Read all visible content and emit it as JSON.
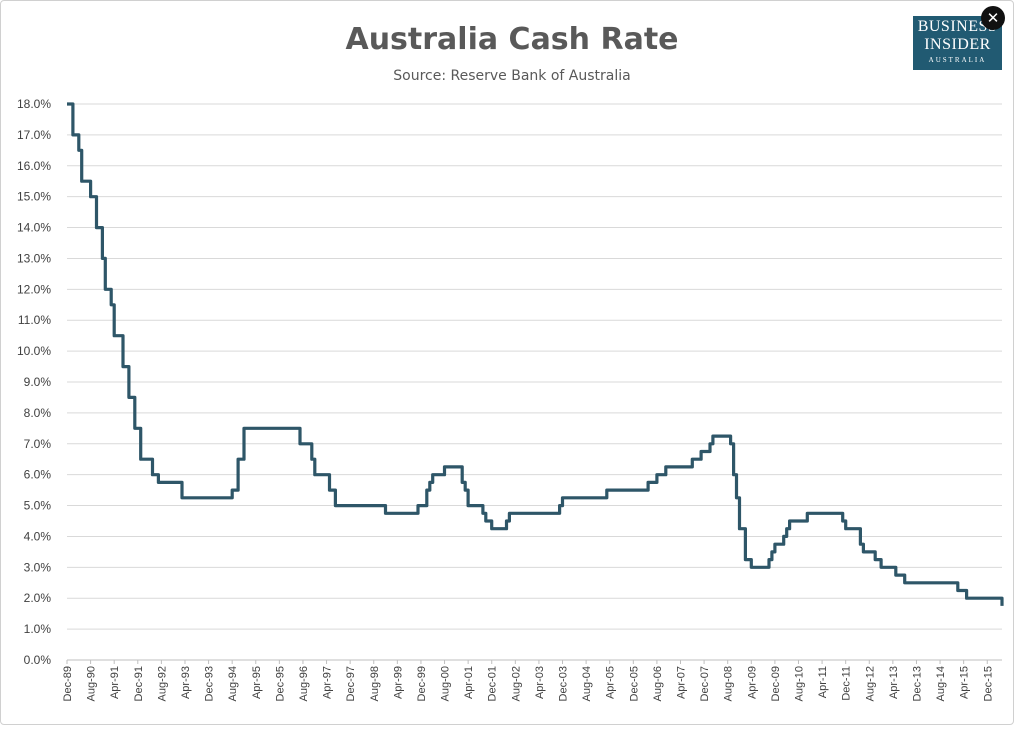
{
  "close_button": {
    "glyph": "✕",
    "icon": "close-icon"
  },
  "logo": {
    "line1": "BUSINESS",
    "line2": "INSIDER",
    "line3": "AUSTRALIA",
    "color": "#215a72"
  },
  "chart_data": {
    "type": "line",
    "title": "Australia Cash Rate",
    "subtitle": "Source: Reserve Bank of Australia",
    "xlabel": "",
    "ylabel": "",
    "ylim": [
      0,
      18
    ],
    "yticks": [
      "0.0%",
      "1.0%",
      "2.0%",
      "3.0%",
      "4.0%",
      "5.0%",
      "6.0%",
      "7.0%",
      "8.0%",
      "9.0%",
      "10.0%",
      "11.0%",
      "12.0%",
      "13.0%",
      "14.0%",
      "15.0%",
      "16.0%",
      "17.0%",
      "18.0%"
    ],
    "xticks": [
      "Dec-89",
      "Aug-90",
      "Apr-91",
      "Dec-91",
      "Aug-92",
      "Apr-93",
      "Dec-93",
      "Aug-94",
      "Apr-95",
      "Dec-95",
      "Aug-96",
      "Apr-97",
      "Dec-97",
      "Aug-98",
      "Apr-99",
      "Dec-99",
      "Aug-00",
      "Apr-01",
      "Dec-01",
      "Aug-02",
      "Apr-03",
      "Dec-03",
      "Aug-04",
      "Apr-05",
      "Dec-05",
      "Aug-06",
      "Apr-07",
      "Dec-07",
      "Aug-08",
      "Apr-09",
      "Dec-09",
      "Aug-10",
      "Apr-11",
      "Dec-11",
      "Aug-12",
      "Apr-13",
      "Dec-13",
      "Aug-14",
      "Apr-15",
      "Dec-15"
    ],
    "grid": true,
    "line_color": "#2e5668",
    "series": [
      {
        "x": [
          "Dec-89",
          "Feb-90",
          "Apr-90",
          "May-90",
          "Aug-90",
          "Oct-90",
          "Dec-90",
          "Jan-91",
          "Mar-91",
          "Apr-91",
          "May-91",
          "Jul-91",
          "Sep-91",
          "Nov-91",
          "Jan-92",
          "May-92",
          "Jul-92",
          "Mar-93",
          "Aug-94",
          "Oct-94",
          "Dec-94",
          "Jul-96",
          "Nov-96",
          "Dec-96",
          "May-97",
          "Jul-97",
          "Dec-98",
          "Nov-99",
          "Feb-00",
          "Mar-00",
          "Apr-00",
          "Aug-00",
          "Feb-01",
          "Mar-01",
          "Apr-01",
          "Sep-01",
          "Oct-01",
          "Dec-01",
          "May-02",
          "Jun-02",
          "Nov-03",
          "Dec-03",
          "Mar-05",
          "May-06",
          "Aug-06",
          "Nov-06",
          "Aug-07",
          "Nov-07",
          "Feb-08",
          "Mar-08",
          "Sep-08",
          "Oct-08",
          "Nov-08",
          "Dec-08",
          "Feb-09",
          "Apr-09",
          "Oct-09",
          "Nov-09",
          "Dec-09",
          "Mar-10",
          "Apr-10",
          "May-10",
          "Nov-10",
          "Nov-11",
          "Dec-11",
          "May-12",
          "Jun-12",
          "Oct-12",
          "Dec-12",
          "May-13",
          "Aug-13",
          "Feb-15",
          "May-15",
          "May-16"
        ],
        "values": [
          18.0,
          17.0,
          16.5,
          15.5,
          15.0,
          14.0,
          13.0,
          12.0,
          11.5,
          10.5,
          10.5,
          9.5,
          8.5,
          7.5,
          6.5,
          6.0,
          5.75,
          5.25,
          5.5,
          6.5,
          7.5,
          7.0,
          6.5,
          6.0,
          5.5,
          5.0,
          4.75,
          5.0,
          5.5,
          5.75,
          6.0,
          6.25,
          5.75,
          5.5,
          5.0,
          4.75,
          4.5,
          4.25,
          4.5,
          4.75,
          5.0,
          5.25,
          5.5,
          5.75,
          6.0,
          6.25,
          6.5,
          6.75,
          7.0,
          7.25,
          7.0,
          6.0,
          5.25,
          4.25,
          3.25,
          3.0,
          3.25,
          3.5,
          3.75,
          4.0,
          4.25,
          4.5,
          4.75,
          4.5,
          4.25,
          3.75,
          3.5,
          3.25,
          3.0,
          2.75,
          2.5,
          2.25,
          2.0,
          1.75
        ]
      }
    ]
  }
}
